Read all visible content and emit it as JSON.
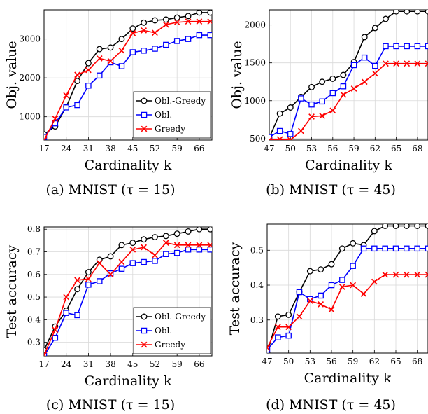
{
  "legend_labels": [
    "Obl.-Greedy",
    "Obl.",
    "Greedy"
  ],
  "series_styles": [
    {
      "color": "#000000",
      "marker": "circle"
    },
    {
      "color": "#0000ff",
      "marker": "square"
    },
    {
      "color": "#ff0000",
      "marker": "x"
    }
  ],
  "chart_data": [
    {
      "type": "line",
      "caption": "(a) MNIST (τ = 15)",
      "xlabel": "Cardinality k",
      "ylabel": "Obj. value",
      "xlim": [
        17,
        70
      ],
      "ylim": [
        400,
        3750
      ],
      "xticks": [
        17,
        24,
        31,
        38,
        45,
        52,
        59,
        66
      ],
      "yticks": [
        1000,
        2000,
        3000
      ],
      "grid": true,
      "legend_position": "bottom-right",
      "x": [
        17,
        20.5,
        24,
        27.5,
        31,
        34.5,
        38,
        41.5,
        45,
        48.5,
        52,
        55.5,
        59,
        62.5,
        66,
        69.5
      ],
      "series": [
        {
          "name": "Obl.-Greedy",
          "values": [
            550,
            750,
            1250,
            1920,
            2380,
            2740,
            2780,
            3000,
            3270,
            3420,
            3480,
            3500,
            3550,
            3590,
            3680,
            3680
          ]
        },
        {
          "name": "Obl.",
          "values": [
            480,
            830,
            1240,
            1300,
            1800,
            2060,
            2400,
            2300,
            2660,
            2700,
            2750,
            2850,
            2950,
            3000,
            3100,
            3100
          ]
        },
        {
          "name": "Greedy",
          "values": [
            400,
            950,
            1550,
            2080,
            2200,
            2500,
            2430,
            2700,
            3150,
            3220,
            3160,
            3370,
            3430,
            3450,
            3450,
            3450
          ]
        }
      ]
    },
    {
      "type": "line",
      "caption": "(b) MNIST (τ = 45)",
      "xlabel": "Cardinality k",
      "ylabel": "Obj. value",
      "xlim": [
        47,
        69.5
      ],
      "ylim": [
        480,
        2200
      ],
      "xticks": [
        47,
        50,
        53,
        56,
        59,
        62,
        65,
        68
      ],
      "yticks": [
        500,
        1000,
        1500,
        2000
      ],
      "grid": true,
      "legend_position": "none",
      "x": [
        47,
        48.5,
        50,
        51.5,
        53,
        54.5,
        56,
        57.5,
        59,
        60.5,
        62,
        63.5,
        65,
        66.5,
        68,
        69.5
      ],
      "series": [
        {
          "name": "Obl.-Greedy",
          "values": [
            510,
            830,
            910,
            1050,
            1180,
            1250,
            1290,
            1340,
            1510,
            1840,
            1960,
            2080,
            2180,
            2180,
            2180,
            2180
          ]
        },
        {
          "name": "Obl.",
          "values": [
            520,
            600,
            560,
            1030,
            950,
            990,
            1100,
            1190,
            1470,
            1570,
            1460,
            1720,
            1720,
            1720,
            1720,
            1720
          ]
        },
        {
          "name": "Greedy",
          "values": [
            480,
            490,
            480,
            600,
            790,
            800,
            870,
            1080,
            1160,
            1250,
            1360,
            1490,
            1490,
            1490,
            1490,
            1490
          ]
        }
      ]
    },
    {
      "type": "line",
      "caption": "(c) MNIST (τ = 15)",
      "xlabel": "Cardinality k",
      "ylabel": "Test accuracy",
      "xlim": [
        17,
        70
      ],
      "ylim": [
        0.24,
        0.81
      ],
      "xticks": [
        17,
        24,
        31,
        38,
        45,
        52,
        59,
        66
      ],
      "yticks": [
        0.3,
        0.4,
        0.5,
        0.6,
        0.7,
        0.8
      ],
      "grid": true,
      "legend_position": "bottom-right",
      "x": [
        17,
        20.5,
        24,
        27.5,
        31,
        34.5,
        38,
        41.5,
        45,
        48.5,
        52,
        55.5,
        59,
        62.5,
        66,
        69.5
      ],
      "series": [
        {
          "name": "Obl.-Greedy",
          "values": [
            0.265,
            0.37,
            0.44,
            0.535,
            0.61,
            0.665,
            0.68,
            0.73,
            0.74,
            0.755,
            0.765,
            0.77,
            0.78,
            0.79,
            0.8,
            0.8
          ]
        },
        {
          "name": "Obl.",
          "values": [
            0.24,
            0.32,
            0.43,
            0.42,
            0.555,
            0.57,
            0.605,
            0.625,
            0.65,
            0.655,
            0.66,
            0.69,
            0.695,
            0.71,
            0.71,
            0.71
          ]
        },
        {
          "name": "Greedy",
          "values": [
            0.245,
            0.355,
            0.5,
            0.575,
            0.58,
            0.65,
            0.6,
            0.655,
            0.71,
            0.72,
            0.685,
            0.74,
            0.73,
            0.73,
            0.73,
            0.73
          ]
        }
      ]
    },
    {
      "type": "line",
      "caption": "(d) MNIST (τ = 45)",
      "xlabel": "Cardinality k",
      "ylabel": "Test accuracy",
      "xlim": [
        47,
        69.5
      ],
      "ylim": [
        0.205,
        0.575
      ],
      "xticks": [
        47,
        50,
        53,
        56,
        59,
        62,
        65,
        68
      ],
      "yticks": [
        0.3,
        0.4,
        0.5
      ],
      "grid": true,
      "legend_position": "none",
      "x": [
        47,
        48.5,
        50,
        51.5,
        53,
        54.5,
        56,
        57.5,
        59,
        60.5,
        62,
        63.5,
        65,
        66.5,
        68,
        69.5
      ],
      "series": [
        {
          "name": "Obl.-Greedy",
          "values": [
            0.205,
            0.31,
            0.315,
            0.38,
            0.44,
            0.445,
            0.46,
            0.505,
            0.52,
            0.515,
            0.555,
            0.57,
            0.57,
            0.57,
            0.57,
            0.57
          ]
        },
        {
          "name": "Obl.",
          "values": [
            0.215,
            0.25,
            0.255,
            0.38,
            0.36,
            0.37,
            0.4,
            0.415,
            0.455,
            0.505,
            0.505,
            0.505,
            0.505,
            0.505,
            0.505,
            0.505
          ]
        },
        {
          "name": "Greedy",
          "values": [
            0.22,
            0.28,
            0.28,
            0.31,
            0.355,
            0.345,
            0.33,
            0.395,
            0.4,
            0.375,
            0.41,
            0.43,
            0.43,
            0.43,
            0.43,
            0.43
          ]
        }
      ]
    }
  ]
}
